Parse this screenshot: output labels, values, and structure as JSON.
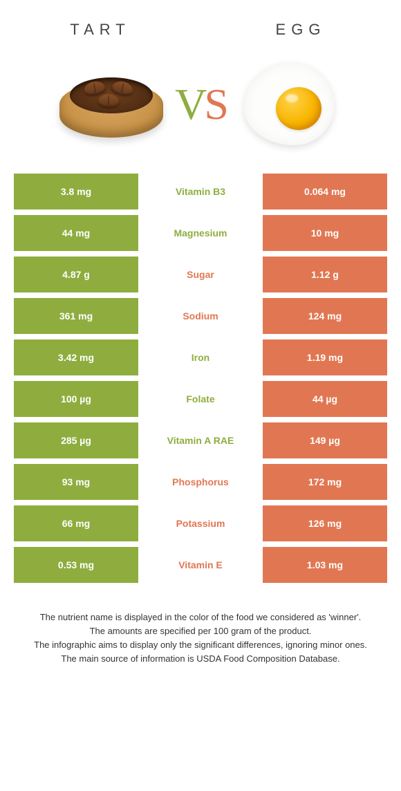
{
  "colors": {
    "tart_green": "#8fad3f",
    "egg_orange": "#e17752"
  },
  "header": {
    "food_a": "TART",
    "food_b": "EGG",
    "vs_v": "V",
    "vs_s": "S"
  },
  "rows": [
    {
      "left": "3.8 mg",
      "label": "Vitamin B3",
      "right": "0.064 mg",
      "winner": "tart"
    },
    {
      "left": "44 mg",
      "label": "Magnesium",
      "right": "10 mg",
      "winner": "tart"
    },
    {
      "left": "4.87 g",
      "label": "Sugar",
      "right": "1.12 g",
      "winner": "egg"
    },
    {
      "left": "361 mg",
      "label": "Sodium",
      "right": "124 mg",
      "winner": "egg"
    },
    {
      "left": "3.42 mg",
      "label": "Iron",
      "right": "1.19 mg",
      "winner": "tart"
    },
    {
      "left": "100 µg",
      "label": "Folate",
      "right": "44 µg",
      "winner": "tart"
    },
    {
      "left": "285 µg",
      "label": "Vitamin A RAE",
      "right": "149 µg",
      "winner": "tart"
    },
    {
      "left": "93 mg",
      "label": "Phosphorus",
      "right": "172 mg",
      "winner": "egg"
    },
    {
      "left": "66 mg",
      "label": "Potassium",
      "right": "126 mg",
      "winner": "egg"
    },
    {
      "left": "0.53 mg",
      "label": "Vitamin E",
      "right": "1.03 mg",
      "winner": "egg"
    }
  ],
  "footer": {
    "line1": "The nutrient name is displayed in the color of the food we considered as 'winner'.",
    "line2": "The amounts are specified per 100 gram of the product.",
    "line3": "The infographic aims to display only the significant differences, ignoring minor ones.",
    "line4": "The main source of information is USDA Food Composition Database."
  }
}
